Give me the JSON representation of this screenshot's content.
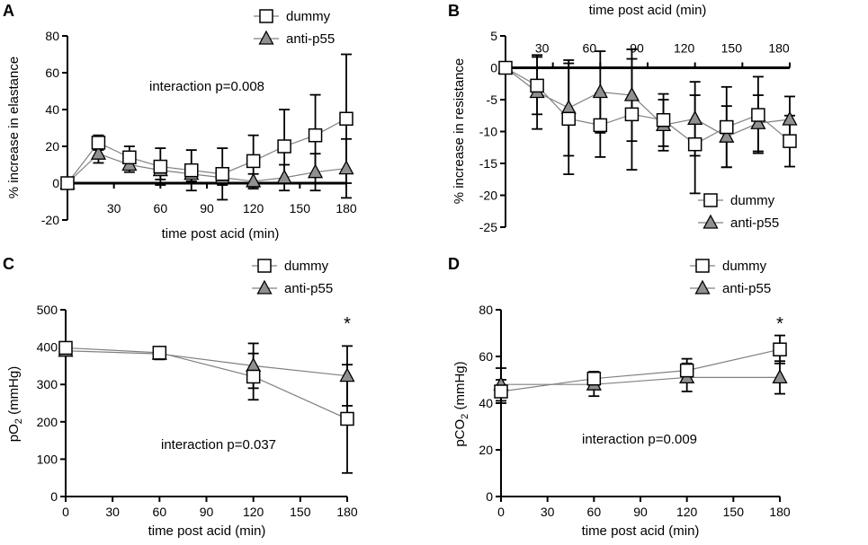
{
  "chart_data": [
    {
      "panel": "A",
      "type": "line",
      "title": "",
      "xlabel": "time post acid (min)",
      "ylabel": "% increase in elastance",
      "xlim": [
        0,
        180
      ],
      "ylim": [
        -20,
        80
      ],
      "xticks": [
        30,
        60,
        90,
        120,
        150,
        180
      ],
      "yticks": [
        -20,
        0,
        20,
        40,
        60,
        80
      ],
      "x_axis_at_zero": true,
      "legend_position": "top-right",
      "annotation": "interaction p=0.008",
      "series": [
        {
          "name": "dummy",
          "marker": "square",
          "x": [
            0,
            20,
            40,
            60,
            80,
            100,
            120,
            140,
            160,
            180
          ],
          "y": [
            0,
            22,
            14,
            9,
            7,
            5,
            12,
            20,
            26,
            35
          ],
          "err": [
            0,
            4,
            6,
            10,
            11,
            14,
            14,
            20,
            22,
            35
          ]
        },
        {
          "name": "anti-p55",
          "marker": "triangle",
          "x": [
            0,
            20,
            40,
            60,
            80,
            100,
            120,
            140,
            160,
            180
          ],
          "y": [
            0,
            16,
            10,
            7,
            5,
            3,
            1,
            3,
            6,
            8
          ],
          "err": [
            0,
            5,
            4,
            5,
            4,
            4,
            4,
            7,
            10,
            16
          ]
        }
      ]
    },
    {
      "panel": "B",
      "type": "line",
      "title": "",
      "xlabel": "time post acid (min)",
      "ylabel": "% increase in resistance",
      "xlim": [
        0,
        180
      ],
      "ylim": [
        -25,
        5
      ],
      "xticks": [
        30,
        60,
        90,
        120,
        150,
        180
      ],
      "yticks": [
        -25,
        -20,
        -15,
        -10,
        -5,
        0,
        5
      ],
      "x_axis_at_zero": true,
      "x_axis_top_labels": true,
      "legend_position": "bottom-right",
      "series": [
        {
          "name": "dummy",
          "marker": "square",
          "x": [
            0,
            20,
            40,
            60,
            80,
            100,
            120,
            140,
            160,
            180
          ],
          "y": [
            0,
            -2.8,
            -8,
            -9,
            -7.3,
            -8.2,
            -12,
            -9.3,
            -7.4,
            -11.5
          ],
          "err": [
            0,
            4.5,
            8.7,
            5,
            8.7,
            4.1,
            7.7,
            6.3,
            6,
            4
          ]
        },
        {
          "name": "anti-p55",
          "marker": "triangle",
          "x": [
            0,
            20,
            40,
            60,
            80,
            100,
            120,
            140,
            160,
            180
          ],
          "y": [
            0,
            -3.8,
            -6.3,
            -3.8,
            -4.3,
            -9,
            -8,
            -10.8,
            -8.7,
            -8.1
          ],
          "err": [
            0,
            5.8,
            7.5,
            6.4,
            7.2,
            4,
            5.8,
            4.8,
            4.4,
            3.6
          ]
        }
      ]
    },
    {
      "panel": "C",
      "type": "line",
      "title": "",
      "xlabel": "time post acid (min)",
      "ylabel": "pO",
      "ylabel_subscript": "2",
      "ylabel_unit": " (mmHg)",
      "xlim": [
        0,
        180
      ],
      "ylim": [
        0,
        500
      ],
      "xticks": [
        0,
        30,
        60,
        90,
        120,
        150,
        180
      ],
      "yticks": [
        0,
        100,
        200,
        300,
        400,
        500
      ],
      "legend_position": "top-right",
      "annotation": "interaction p=0.037",
      "significance": [
        {
          "x": 180,
          "label": "*"
        }
      ],
      "series": [
        {
          "name": "dummy",
          "marker": "square",
          "x": [
            0,
            60,
            120,
            180
          ],
          "y": [
            398,
            385,
            321,
            208
          ],
          "err": [
            10,
            15,
            62,
            145
          ]
        },
        {
          "name": "anti-p55",
          "marker": "triangle",
          "x": [
            0,
            60,
            120,
            180
          ],
          "y": [
            390,
            382,
            350,
            323
          ],
          "err": [
            10,
            15,
            60,
            80
          ]
        }
      ]
    },
    {
      "panel": "D",
      "type": "line",
      "title": "",
      "xlabel": "time post acid (min)",
      "ylabel": "pCO",
      "ylabel_subscript": "2",
      "ylabel_unit": " (mmHg)",
      "xlim": [
        0,
        180
      ],
      "ylim": [
        0,
        80
      ],
      "xticks": [
        0,
        30,
        60,
        90,
        120,
        150,
        180
      ],
      "yticks": [
        0,
        20,
        40,
        60,
        80
      ],
      "legend_position": "top-right",
      "annotation": "interaction p=0.009",
      "significance": [
        {
          "x": 180,
          "label": "*"
        }
      ],
      "series": [
        {
          "name": "dummy",
          "marker": "square",
          "x": [
            0,
            60,
            120,
            180
          ],
          "y": [
            45,
            50.5,
            54,
            63
          ],
          "err": [
            5,
            3,
            5,
            6
          ]
        },
        {
          "name": "anti-p55",
          "marker": "triangle",
          "x": [
            0,
            60,
            120,
            180
          ],
          "y": [
            48,
            48,
            51,
            51
          ],
          "err": [
            7,
            5,
            6,
            7
          ]
        }
      ]
    }
  ]
}
